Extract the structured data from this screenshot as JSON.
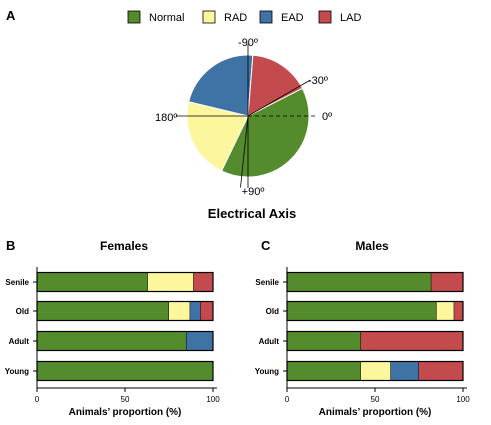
{
  "colors": {
    "Normal": "#548b2c",
    "RAD": "#fcf69c",
    "EAD": "#3f73a6",
    "LAD": "#c34a4d"
  },
  "legend": [
    "Normal",
    "RAD",
    "EAD",
    "LAD"
  ],
  "chart_data": [
    {
      "panel": "A",
      "type": "pie",
      "title": "Electrical Axis",
      "labels": [
        "Normal",
        "RAD",
        "EAD",
        "LAD"
      ],
      "values": [
        44,
        24,
        25,
        18
      ],
      "angle_labels": [
        "-90º",
        "-30º",
        "0º",
        "180º",
        "+90º"
      ]
    },
    {
      "panel": "B",
      "type": "bar",
      "orientation": "horizontal",
      "stacked": true,
      "title": "Females",
      "xlabel": "Animals’ proportion (%)",
      "xlim": [
        0,
        100
      ],
      "xticks": [
        "0",
        "50",
        "100"
      ],
      "categories": [
        "Senile",
        "Old",
        "Adult",
        "Young"
      ],
      "series": [
        {
          "name": "Normal",
          "values": [
            63,
            75,
            85,
            100
          ]
        },
        {
          "name": "RAD",
          "values": [
            26,
            12,
            0,
            0
          ]
        },
        {
          "name": "EAD",
          "values": [
            0,
            6,
            15,
            0
          ]
        },
        {
          "name": "LAD",
          "values": [
            11,
            7,
            0,
            0
          ]
        }
      ]
    },
    {
      "panel": "C",
      "type": "bar",
      "orientation": "horizontal",
      "stacked": true,
      "title": "Males",
      "xlabel": "Animals’ proportion (%)",
      "xlim": [
        0,
        100
      ],
      "xticks": [
        "0",
        "50",
        "100"
      ],
      "categories": [
        "Senile",
        "Old",
        "Adult",
        "Young"
      ],
      "series": [
        {
          "name": "Normal",
          "values": [
            82,
            85,
            42,
            42
          ]
        },
        {
          "name": "RAD",
          "values": [
            0,
            10,
            0,
            17
          ]
        },
        {
          "name": "EAD",
          "values": [
            0,
            0,
            0,
            16
          ]
        },
        {
          "name": "LAD",
          "values": [
            18,
            5,
            58,
            25
          ]
        }
      ]
    }
  ]
}
